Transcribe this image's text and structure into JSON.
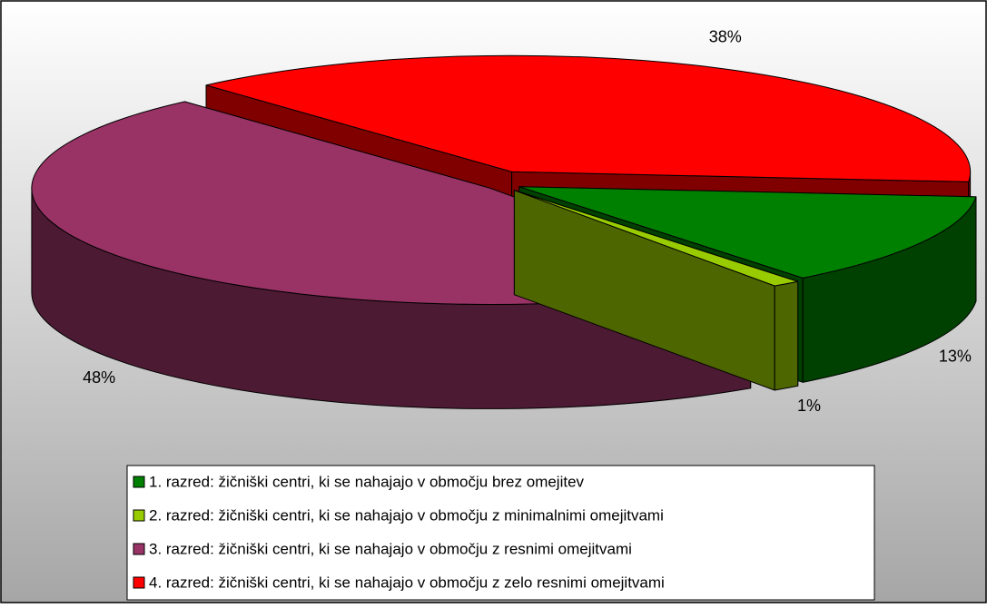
{
  "chart_data": {
    "type": "pie3d",
    "categories": [
      "1. razred:  žičniški centri, ki se nahajajo v območju brez omejitev",
      "2. razred:  žičniški centri, ki se nahajajo v območju z minimalnimi omejitvami",
      "3. razred:  žičniški centri, ki se nahajajo v območju z resnimi omejitvami",
      "4. razred:  žičniški centri, ki se nahajajo v območju z zelo resnimi omejitvami"
    ],
    "values": [
      13,
      1,
      48,
      38
    ],
    "value_labels": [
      "13%",
      "1%",
      "48%",
      "38%"
    ],
    "colors": [
      "#008000",
      "#99cc00",
      "#993366",
      "#ff0000"
    ],
    "legend": "bottom"
  }
}
